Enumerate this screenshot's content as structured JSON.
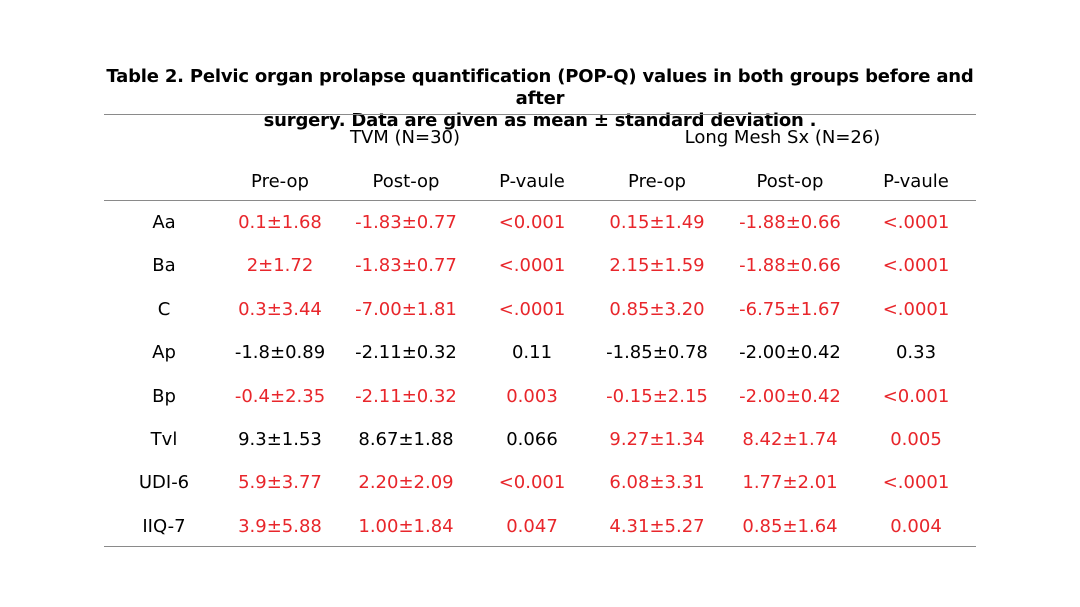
{
  "caption": {
    "line1": "Table 2. Pelvic organ prolapse quantification (POP-Q) values in both groups before and after",
    "line2": "surgery. Data are given as mean ± standard deviation ."
  },
  "groups": [
    {
      "label": "TVM (N=30)"
    },
    {
      "label": "Long Mesh Sx (N=26)"
    }
  ],
  "subheaders": [
    "Pre-op",
    "Post-op",
    "P-vaule",
    "Pre-op",
    "Post-op",
    "P-vaule"
  ],
  "colors": {
    "significant": "#e8262b",
    "normal": "#000000"
  },
  "rows": [
    {
      "label": "Aa",
      "cells": [
        {
          "v": "0.1±1.68",
          "red": true
        },
        {
          "v": "-1.83±0.77",
          "red": true
        },
        {
          "v": "<0.001",
          "red": true
        },
        {
          "v": "0.15±1.49",
          "red": true
        },
        {
          "v": "-1.88±0.66",
          "red": true
        },
        {
          "v": "<.0001",
          "red": true
        }
      ]
    },
    {
      "label": "Ba",
      "cells": [
        {
          "v": "2±1.72",
          "red": true
        },
        {
          "v": "-1.83±0.77",
          "red": true
        },
        {
          "v": "<.0001",
          "red": true
        },
        {
          "v": "2.15±1.59",
          "red": true
        },
        {
          "v": "-1.88±0.66",
          "red": true
        },
        {
          "v": "<.0001",
          "red": true
        }
      ]
    },
    {
      "label": "C",
      "cells": [
        {
          "v": "0.3±3.44",
          "red": true
        },
        {
          "v": "-7.00±1.81",
          "red": true
        },
        {
          "v": "<.0001",
          "red": true
        },
        {
          "v": "0.85±3.20",
          "red": true
        },
        {
          "v": "-6.75±1.67",
          "red": true
        },
        {
          "v": "<.0001",
          "red": true
        }
      ]
    },
    {
      "label": "Ap",
      "cells": [
        {
          "v": "-1.8±0.89",
          "red": false
        },
        {
          "v": "-2.11±0.32",
          "red": false
        },
        {
          "v": "0.11",
          "red": false
        },
        {
          "v": "-1.85±0.78",
          "red": false
        },
        {
          "v": "-2.00±0.42",
          "red": false
        },
        {
          "v": "0.33",
          "red": false
        }
      ]
    },
    {
      "label": "Bp",
      "cells": [
        {
          "v": "-0.4±2.35",
          "red": true
        },
        {
          "v": "-2.11±0.32",
          "red": true
        },
        {
          "v": "0.003",
          "red": true
        },
        {
          "v": "-0.15±2.15",
          "red": true
        },
        {
          "v": "-2.00±0.42",
          "red": true
        },
        {
          "v": "<0.001",
          "red": true
        }
      ]
    },
    {
      "label": "Tvl",
      "cells": [
        {
          "v": "9.3±1.53",
          "red": false
        },
        {
          "v": "8.67±1.88",
          "red": false
        },
        {
          "v": "0.066",
          "red": false
        },
        {
          "v": "9.27±1.34",
          "red": true
        },
        {
          "v": "8.42±1.74",
          "red": true
        },
        {
          "v": "0.005",
          "red": true
        }
      ]
    },
    {
      "label": "UDI-6",
      "cells": [
        {
          "v": "5.9±3.77",
          "red": true
        },
        {
          "v": "2.20±2.09",
          "red": true
        },
        {
          "v": "<0.001",
          "red": true
        },
        {
          "v": "6.08±3.31",
          "red": true
        },
        {
          "v": "1.77±2.01",
          "red": true
        },
        {
          "v": "<.0001",
          "red": true
        }
      ]
    },
    {
      "label": "IIQ-7",
      "cells": [
        {
          "v": "3.9±5.88",
          "red": true
        },
        {
          "v": "1.00±1.84",
          "red": true
        },
        {
          "v": "0.047",
          "red": true
        },
        {
          "v": "4.31±5.27",
          "red": true
        },
        {
          "v": "0.85±1.64",
          "red": true
        },
        {
          "v": "0.004",
          "red": true
        }
      ]
    }
  ]
}
